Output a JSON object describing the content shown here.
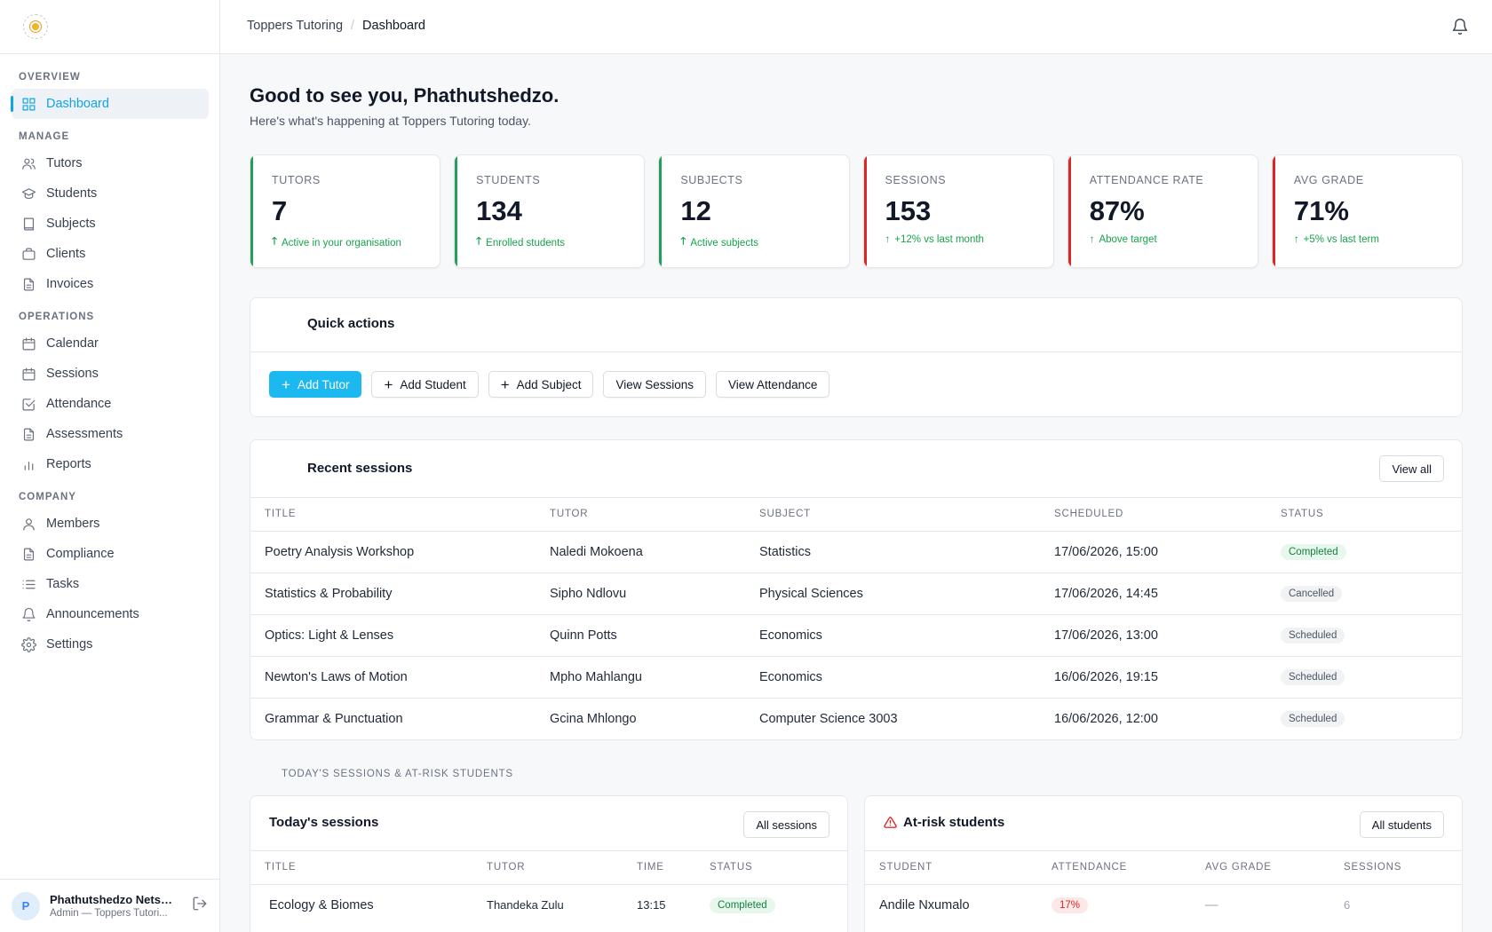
{
  "app": {
    "logo_icon": "org-logo"
  },
  "topbar": {
    "crumb_org": "Toppers Tutoring",
    "crumb_sep": "/",
    "crumb_page": "Dashboard"
  },
  "nav": {
    "sections": [
      {
        "title": "OVERVIEW",
        "items": [
          {
            "label": "Dashboard",
            "icon": "grid-icon",
            "active": true
          }
        ]
      },
      {
        "title": "MANAGE",
        "items": [
          {
            "label": "Tutors",
            "icon": "users-icon"
          },
          {
            "label": "Students",
            "icon": "graduation-cap-icon"
          },
          {
            "label": "Subjects",
            "icon": "book-icon"
          },
          {
            "label": "Clients",
            "icon": "briefcase-icon"
          },
          {
            "label": "Invoices",
            "icon": "file-icon"
          }
        ]
      },
      {
        "title": "OPERATIONS",
        "items": [
          {
            "label": "Calendar",
            "icon": "calendar-icon"
          },
          {
            "label": "Sessions",
            "icon": "calendar-icon"
          },
          {
            "label": "Attendance",
            "icon": "check-square-icon"
          },
          {
            "label": "Assessments",
            "icon": "file-icon"
          },
          {
            "label": "Reports",
            "icon": "bar-chart-icon"
          }
        ]
      },
      {
        "title": "COMPANY",
        "items": [
          {
            "label": "Members",
            "icon": "user-icon"
          },
          {
            "label": "Compliance",
            "icon": "file-icon"
          },
          {
            "label": "Tasks",
            "icon": "list-icon"
          },
          {
            "label": "Announcements",
            "icon": "bell-icon"
          },
          {
            "label": "Settings",
            "icon": "gear-icon"
          }
        ]
      }
    ]
  },
  "user": {
    "initial": "P",
    "name": "Phathutshedzo Netsh...",
    "role": "Admin — Toppers Tutori..."
  },
  "greeting": {
    "title": "Good to see you, Phathutshedzo.",
    "subtitle": "Here's what's happening at Toppers Tutoring today."
  },
  "stats": [
    {
      "label": "TUTORS",
      "value": "7",
      "note": "Active in your organisation",
      "arrow": "🡑",
      "accent": "green"
    },
    {
      "label": "STUDENTS",
      "value": "134",
      "note": "Enrolled students",
      "arrow": "🡑",
      "accent": "green"
    },
    {
      "label": "SUBJECTS",
      "value": "12",
      "note": "Active subjects",
      "arrow": "🡑",
      "accent": "green"
    },
    {
      "label": "SESSIONS",
      "value": "153",
      "note": "+12% vs last month",
      "arrow": "↑",
      "accent": "red"
    },
    {
      "label": "ATTENDANCE RATE",
      "value": "87%",
      "note": "Above target",
      "arrow": "↑",
      "accent": "red"
    },
    {
      "label": "AVG GRADE",
      "value": "71%",
      "note": "+5% vs last term",
      "arrow": "↑",
      "accent": "red"
    }
  ],
  "quick_actions": {
    "title": "Quick actions",
    "buttons": [
      {
        "label": "Add Tutor",
        "plus": "+",
        "primary": true
      },
      {
        "label": "Add Student",
        "plus": "+"
      },
      {
        "label": "Add Subject",
        "plus": "+"
      },
      {
        "label": "View Sessions"
      },
      {
        "label": "View Attendance"
      }
    ]
  },
  "recent_sessions": {
    "title": "Recent sessions",
    "view_all": "View all",
    "columns": [
      "TITLE",
      "TUTOR",
      "SUBJECT",
      "SCHEDULED",
      "STATUS"
    ],
    "rows": [
      {
        "title": "Poetry Analysis Workshop",
        "tutor": "Naledi Mokoena",
        "subject": "Statistics",
        "scheduled": "17/06/2026, 15:00",
        "status": "Completed"
      },
      {
        "title": "Statistics & Probability",
        "tutor": "Sipho Ndlovu",
        "subject": "Physical Sciences",
        "scheduled": "17/06/2026, 14:45",
        "status": "Cancelled"
      },
      {
        "title": "Optics: Light & Lenses",
        "tutor": "Quinn Potts",
        "subject": "Economics",
        "scheduled": "17/06/2026, 13:00",
        "status": "Scheduled"
      },
      {
        "title": "Newton's Laws of Motion",
        "tutor": "Mpho Mahlangu",
        "subject": "Economics",
        "scheduled": "16/06/2026, 19:15",
        "status": "Scheduled"
      },
      {
        "title": "Grammar & Punctuation",
        "tutor": "Gcina Mhlongo",
        "subject": "Computer Science 3003",
        "scheduled": "16/06/2026, 12:00",
        "status": "Scheduled"
      }
    ]
  },
  "section_caption": "TODAY'S SESSIONS & AT-RISK STUDENTS",
  "today_sessions": {
    "title": "Today's sessions",
    "button": "All sessions",
    "columns": [
      "TITLE",
      "TUTOR",
      "TIME",
      "STATUS"
    ],
    "rows": [
      {
        "title": "Ecology & Biomes",
        "tutor": "Thandeka Zulu",
        "time": "13:15",
        "status": "Completed"
      }
    ]
  },
  "at_risk": {
    "title": "At-risk students",
    "icon": "warning-icon",
    "button": "All students",
    "columns": [
      "STUDENT",
      "ATTENDANCE",
      "AVG GRADE",
      "SESSIONS"
    ],
    "rows": [
      {
        "student": "Andile Nxumalo",
        "attendance": "17%",
        "avg_grade": "—",
        "sessions": "6"
      }
    ]
  },
  "colors": {
    "accent": "#1cb8f0",
    "green": "#22a05b",
    "red": "#dc2626"
  }
}
